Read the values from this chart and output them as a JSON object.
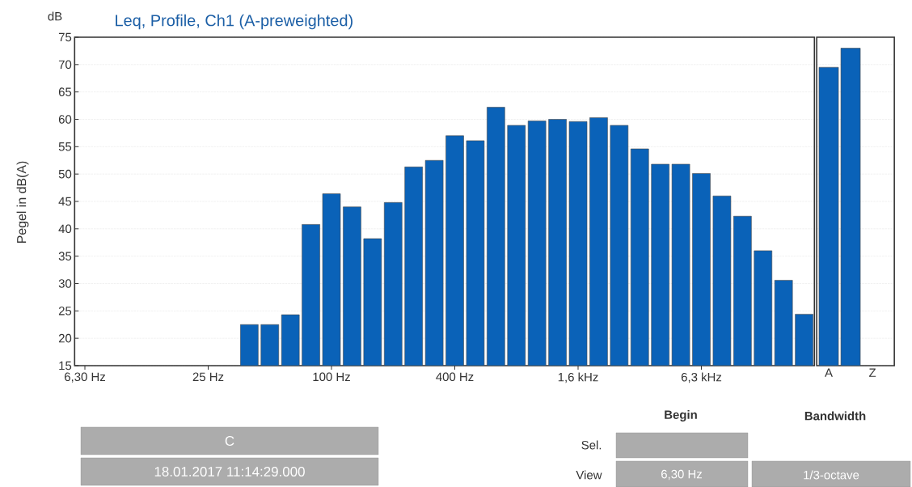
{
  "chart_data": [
    {
      "type": "bar",
      "title": "Leq, Profile, Ch1 (A-preweighted)",
      "ylabel": "Pegel in dB(A)",
      "categories": [
        "6,30 Hz",
        null,
        null,
        null,
        null,
        null,
        "25 Hz",
        null,
        null,
        null,
        null,
        null,
        "100 Hz",
        null,
        null,
        null,
        null,
        null,
        "400 Hz",
        null,
        null,
        null,
        null,
        null,
        "1,6 kHz",
        null,
        null,
        null,
        null,
        null,
        "6,3 kHz",
        null,
        null,
        null,
        null,
        null
      ],
      "values": [
        null,
        null,
        null,
        null,
        null,
        null,
        null,
        null,
        22.5,
        22.5,
        24.3,
        40.8,
        46.4,
        44,
        38.2,
        44.8,
        51.3,
        52.5,
        57,
        56.1,
        62.2,
        58.9,
        59.7,
        60,
        59.6,
        60.3,
        58.9,
        54.6,
        51.8,
        51.8,
        50.1,
        46,
        42.3,
        36,
        30.6,
        24.4
      ],
      "color": "#0a62b8",
      "ylim": [
        15,
        75
      ],
      "yticks": [
        15,
        20,
        25,
        30,
        35,
        40,
        45,
        50,
        55,
        60,
        65,
        70,
        75
      ],
      "grid": "y",
      "annotations": [
        "dB",
        "C",
        "18.01.2017 11:14:29.000",
        "Begin",
        "Bandwidth",
        "Sel.",
        "View",
        "6,30 Hz",
        "1/3-octave"
      ]
    },
    {
      "type": "bar",
      "categories": [
        "A",
        null,
        "Z"
      ],
      "values": [
        69.5,
        73,
        null
      ],
      "color": "#0a62b8",
      "ylim": [
        15,
        75
      ],
      "yticks": [
        15,
        20,
        25,
        30,
        35,
        40,
        45,
        50,
        55,
        60,
        65,
        70,
        75
      ],
      "grid": "y",
      "tick_labels": "x"
    }
  ]
}
